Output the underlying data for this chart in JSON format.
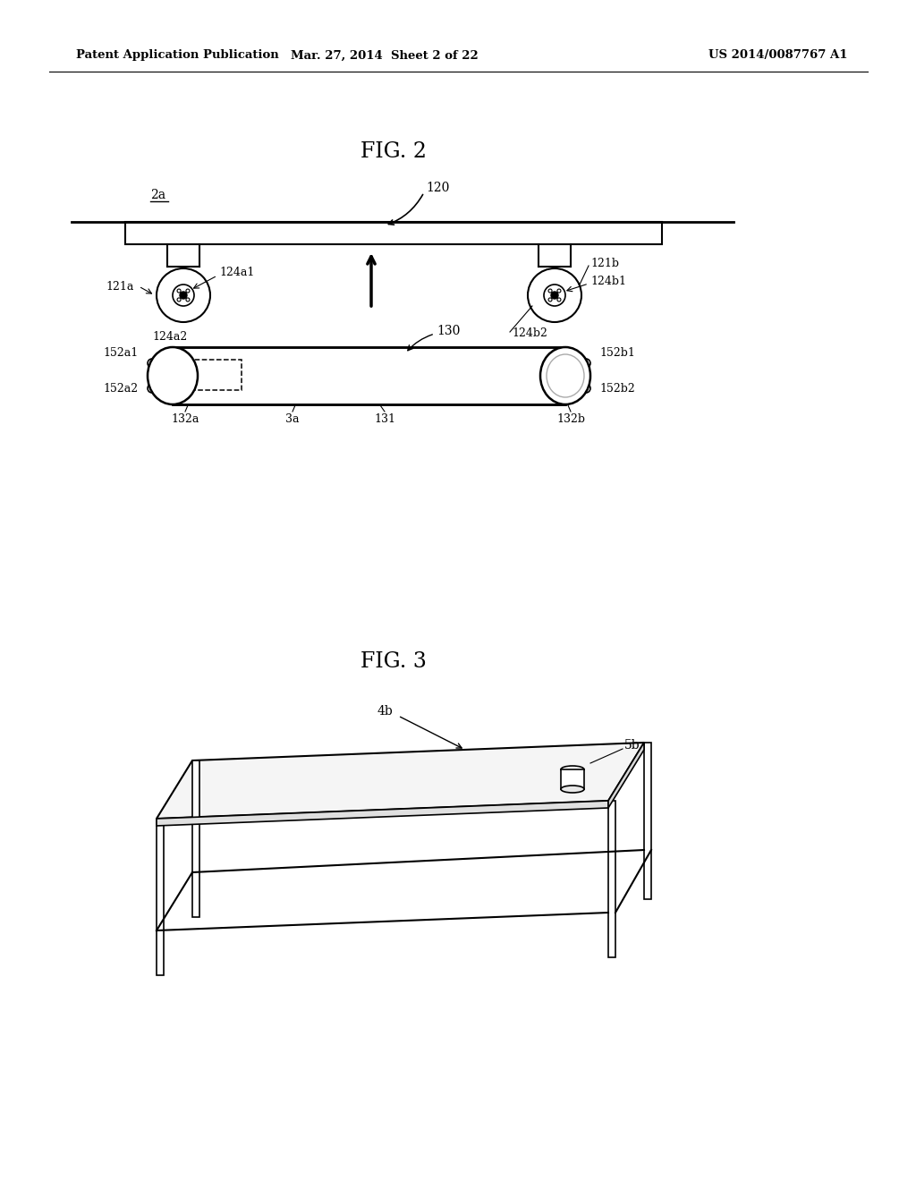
{
  "bg_color": "#ffffff",
  "header_left": "Patent Application Publication",
  "header_mid": "Mar. 27, 2014  Sheet 2 of 22",
  "header_right": "US 2014/0087767 A1",
  "fig2_title": "FIG. 2",
  "fig3_title": "FIG. 3",
  "label_2a": "2a",
  "label_120": "120",
  "label_121a": "121a",
  "label_121b": "121b",
  "label_124a1": "124a1",
  "label_124a2": "124a2",
  "label_124b1": "124b1",
  "label_124b2": "124b2",
  "label_130": "130",
  "label_131": "131",
  "label_132a": "132a",
  "label_132b": "132b",
  "label_3a": "3a",
  "label_152a1": "152a1",
  "label_152a2": "152a2",
  "label_152b1": "152b1",
  "label_152b2": "152b2",
  "label_4b": "4b",
  "label_5b": "5b"
}
